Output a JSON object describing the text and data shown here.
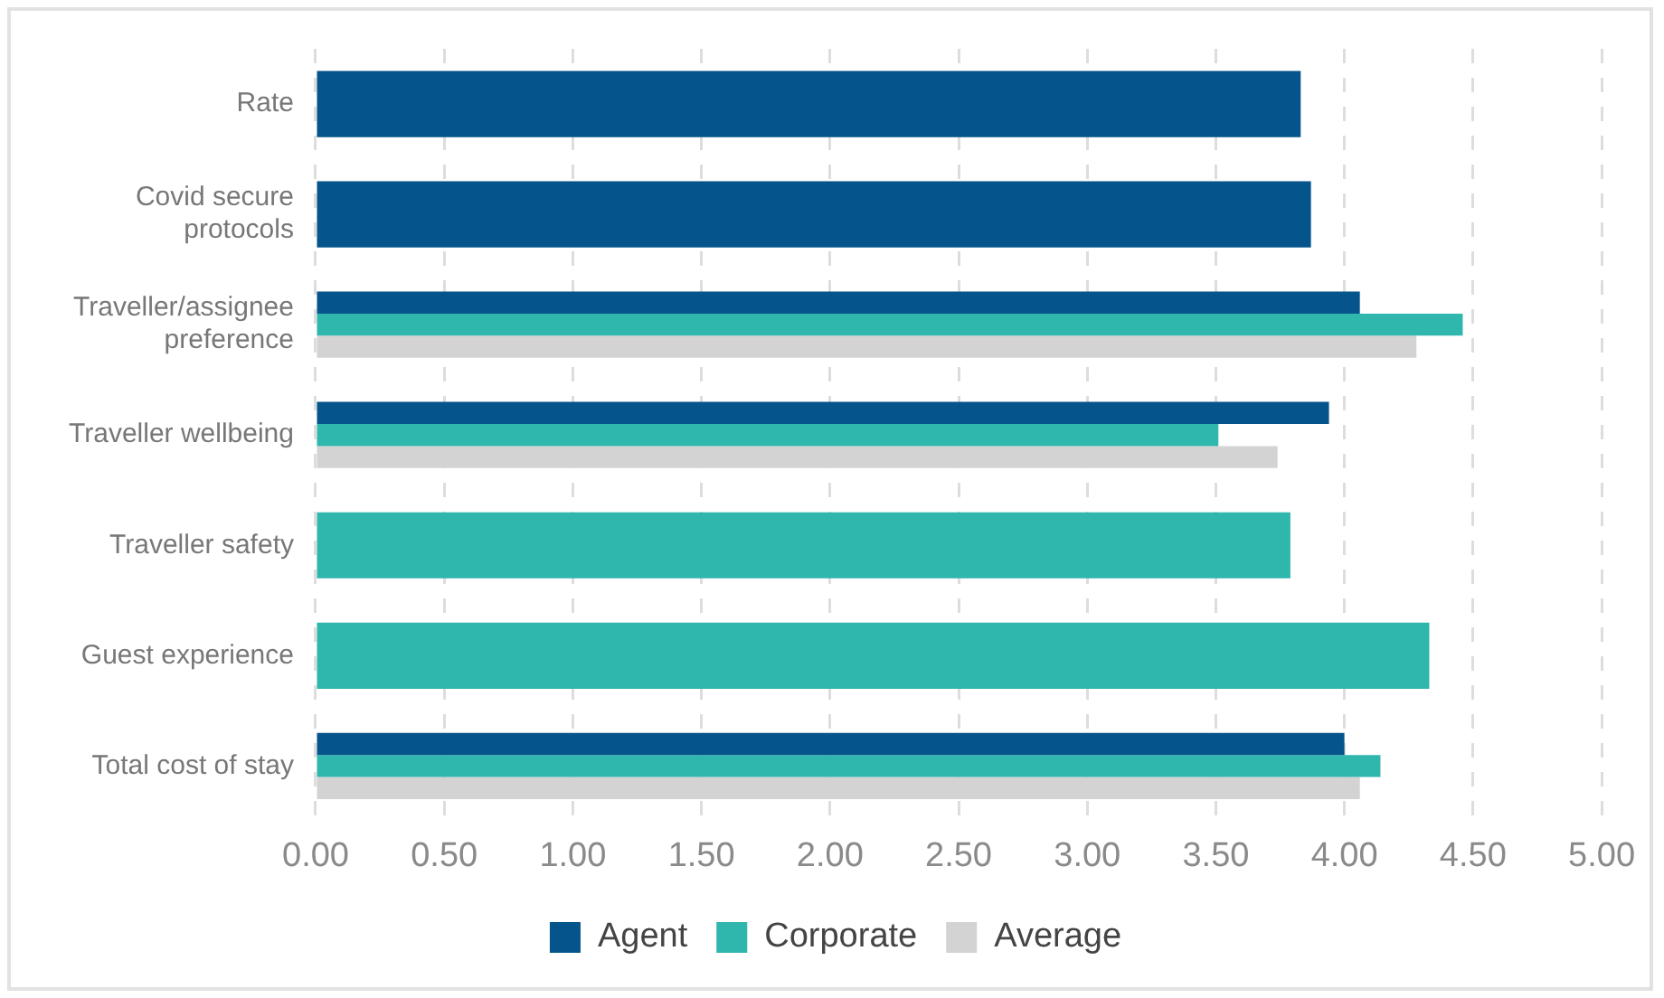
{
  "chart_data": {
    "type": "bar",
    "orientation": "horizontal",
    "categories": [
      "Rate",
      "Covid secure protocols",
      "Traveller/assignee preference",
      "Traveller wellbeing",
      "Traveller safety",
      "Guest experience",
      "Total cost of stay"
    ],
    "series": [
      {
        "name": "Agent",
        "color": "#05548c",
        "values": [
          3.83,
          3.87,
          4.06,
          3.94,
          null,
          null,
          4.0
        ]
      },
      {
        "name": "Corporate",
        "color": "#2fb6ad",
        "values": [
          null,
          null,
          4.46,
          3.51,
          3.79,
          4.33,
          4.14
        ]
      },
      {
        "name": "Average",
        "color": "#d3d3d3",
        "values": [
          null,
          null,
          4.28,
          3.74,
          null,
          null,
          4.06
        ]
      }
    ],
    "xlim": [
      0,
      5
    ],
    "xticks": [
      {
        "value": 0,
        "label": "0.00"
      },
      {
        "value": 0.5,
        "label": "0.50"
      },
      {
        "value": 1,
        "label": "1.00"
      },
      {
        "value": 1.5,
        "label": "1.50"
      },
      {
        "value": 2,
        "label": "2.00"
      },
      {
        "value": 2.5,
        "label": "2.50"
      },
      {
        "value": 3,
        "label": "3.00"
      },
      {
        "value": 3.5,
        "label": "3.50"
      },
      {
        "value": 4,
        "label": "4.00"
      },
      {
        "value": 4.5,
        "label": "4.50"
      },
      {
        "value": 5,
        "label": "5.00"
      }
    ],
    "grid": "x",
    "legend": "bottom"
  }
}
